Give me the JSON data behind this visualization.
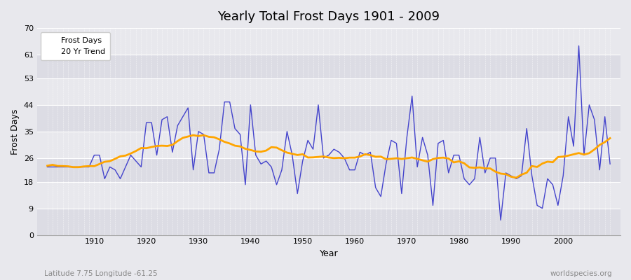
{
  "title": "Yearly Total Frost Days 1901 - 2009",
  "xlabel": "Year",
  "ylabel": "Frost Days",
  "subtitle": "Latitude 7.75 Longitude -61.25",
  "watermark": "worldspecies.org",
  "bg_color": "#e8e8ed",
  "band_colors": [
    "#dcdce4",
    "#e8e8ed"
  ],
  "line_color": "#4444cc",
  "trend_color": "#ffa500",
  "ylim": [
    0,
    70
  ],
  "yticks": [
    0,
    9,
    18,
    26,
    35,
    44,
    53,
    61,
    70
  ],
  "years": [
    1901,
    1902,
    1903,
    1904,
    1905,
    1906,
    1907,
    1908,
    1909,
    1910,
    1911,
    1912,
    1913,
    1914,
    1915,
    1916,
    1917,
    1918,
    1919,
    1920,
    1921,
    1922,
    1923,
    1924,
    1925,
    1926,
    1927,
    1928,
    1929,
    1930,
    1931,
    1932,
    1933,
    1934,
    1935,
    1936,
    1937,
    1938,
    1939,
    1940,
    1941,
    1942,
    1943,
    1944,
    1945,
    1946,
    1947,
    1948,
    1949,
    1950,
    1951,
    1952,
    1953,
    1954,
    1955,
    1956,
    1957,
    1958,
    1959,
    1960,
    1961,
    1962,
    1963,
    1964,
    1965,
    1966,
    1967,
    1968,
    1969,
    1970,
    1971,
    1972,
    1973,
    1974,
    1975,
    1976,
    1977,
    1978,
    1979,
    1980,
    1981,
    1982,
    1983,
    1984,
    1985,
    1986,
    1987,
    1988,
    1989,
    1990,
    1991,
    1992,
    1993,
    1994,
    1995,
    1996,
    1997,
    1998,
    1999,
    2000,
    2001,
    2002,
    2003,
    2004,
    2005,
    2006,
    2007,
    2008,
    2009
  ],
  "frost_days": [
    23,
    23,
    23,
    23,
    23,
    23,
    23,
    23,
    23,
    27,
    27,
    19,
    23,
    22,
    19,
    23,
    27,
    25,
    23,
    38,
    38,
    27,
    39,
    40,
    28,
    37,
    40,
    43,
    22,
    35,
    34,
    21,
    21,
    29,
    45,
    45,
    36,
    34,
    17,
    44,
    27,
    24,
    25,
    23,
    17,
    22,
    35,
    27,
    14,
    25,
    32,
    29,
    44,
    26,
    27,
    29,
    28,
    26,
    22,
    22,
    28,
    27,
    28,
    16,
    13,
    24,
    32,
    31,
    14,
    33,
    47,
    23,
    33,
    27,
    10,
    31,
    32,
    21,
    27,
    27,
    19,
    17,
    19,
    33,
    21,
    26,
    26,
    5,
    21,
    20,
    19,
    20,
    36,
    20,
    10,
    9,
    19,
    17,
    10,
    20,
    40,
    30,
    64,
    27,
    44,
    39,
    22,
    40,
    24
  ]
}
